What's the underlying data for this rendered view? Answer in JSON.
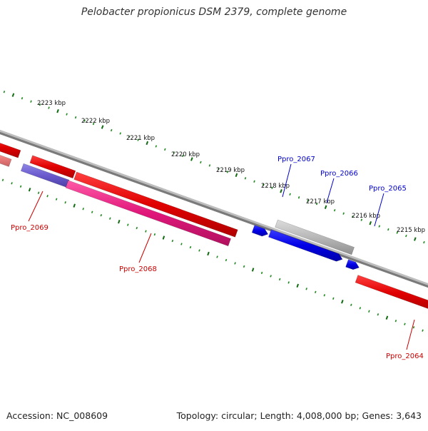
{
  "title": "Pelobacter propionicus DSM 2379, complete genome",
  "footer": {
    "accession": "Accession: NC_008609",
    "summary": "Topology: circular; Length: 4,008,000 bp; Genes: 3,643"
  },
  "colors": {
    "backbone": "#7a7a7a",
    "tick_minor": "#1f8a1f",
    "tick_major": "#0f6b0f",
    "forward_label": "#0000cc",
    "reverse_label": "#cc0000",
    "gene_red": "#e00000",
    "gene_magenta": "#e0177a",
    "gene_blue": "#0000e6",
    "gene_gray": "#b0b0b0",
    "gene_purple": "#6a5acd",
    "gene_salmon": "#f08080"
  },
  "scale_ticks": [
    {
      "label": "2223 kbp"
    },
    {
      "label": "2222 kbp"
    },
    {
      "label": "2221 kbp"
    },
    {
      "label": "2220 kbp"
    },
    {
      "label": "2219 kbp"
    },
    {
      "label": "2218 kbp"
    },
    {
      "label": "2217 kbp"
    },
    {
      "label": "2216 kbp"
    },
    {
      "label": "2215 kbp"
    }
  ],
  "gene_labels": [
    {
      "name": "Ppro_2067",
      "strand": "forward"
    },
    {
      "name": "Ppro_2066",
      "strand": "forward"
    },
    {
      "name": "Ppro_2065",
      "strand": "forward"
    },
    {
      "name": "Ppro_2069",
      "strand": "reverse"
    },
    {
      "name": "Ppro_2068",
      "strand": "reverse"
    },
    {
      "name": "Ppro_2064",
      "strand": "reverse"
    }
  ]
}
